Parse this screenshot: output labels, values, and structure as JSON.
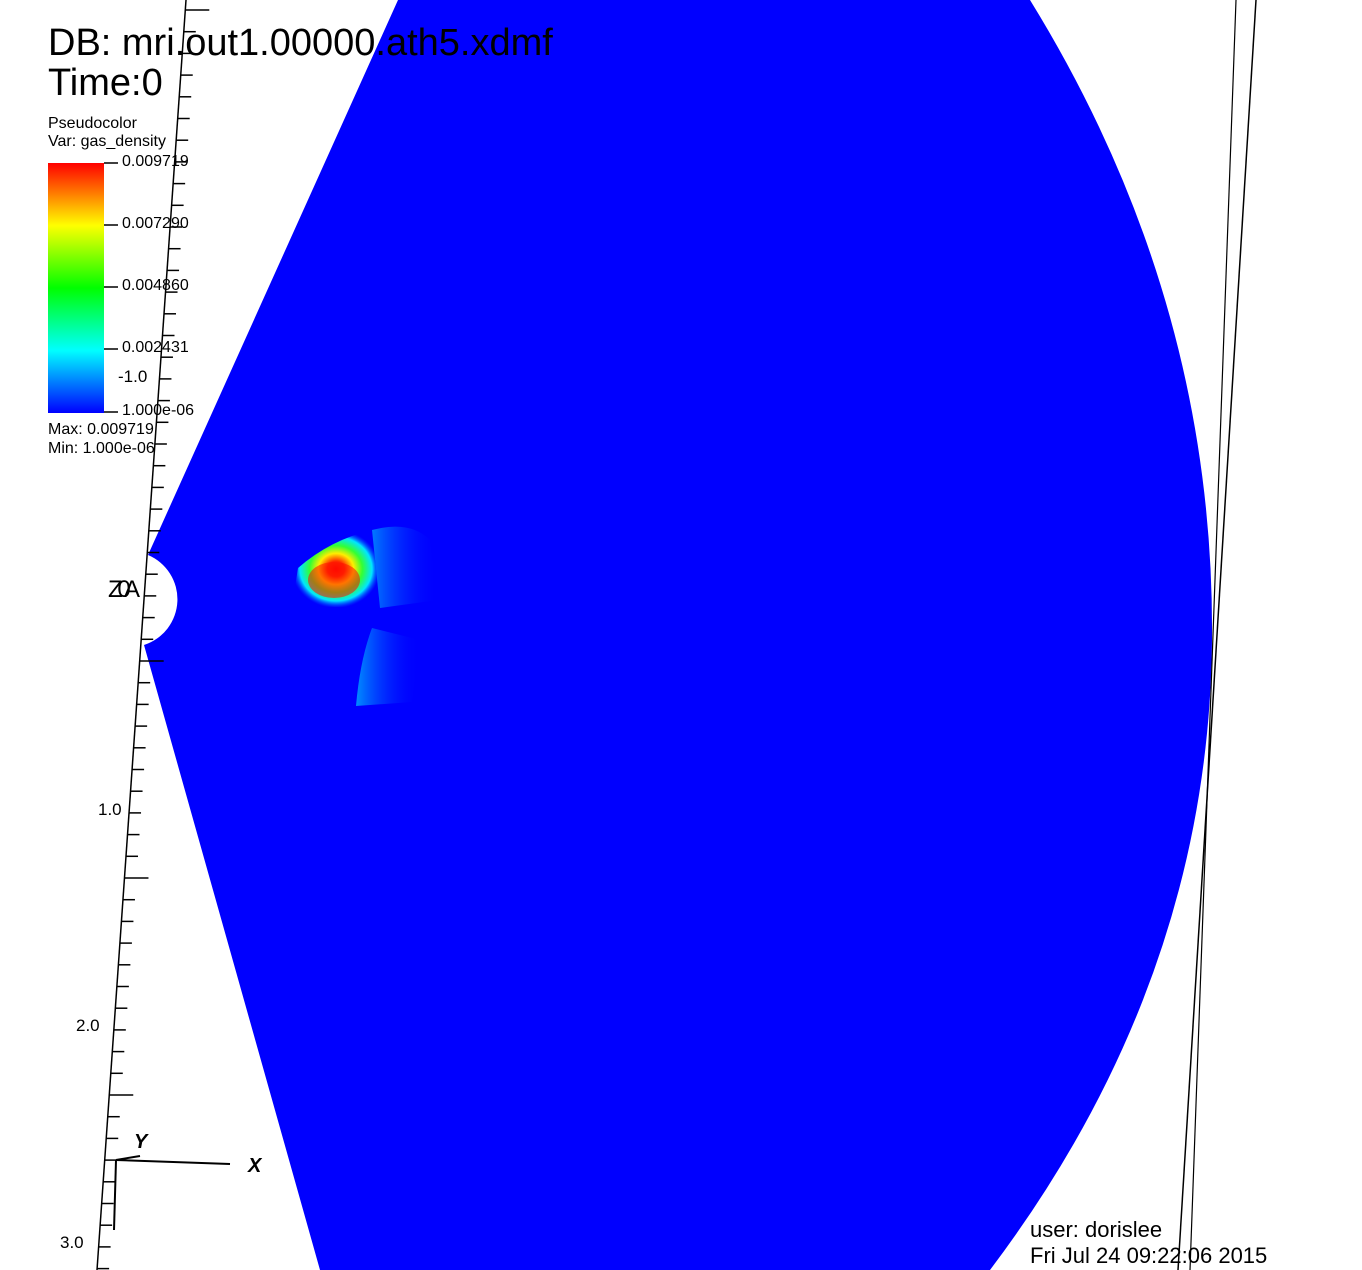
{
  "header": {
    "db_line": "DB: mri.out1.00000.ath5.xdmf",
    "time_line": "Time:0"
  },
  "legend": {
    "plot_type": "Pseudocolor",
    "variable_line": "Var: gas_density",
    "ticks": [
      "0.009719",
      "0.007290",
      "0.004860",
      "0.002431",
      "1.000e-06"
    ],
    "max_line": "Max: 0.009719",
    "min_line": "Min: 1.000e-06",
    "colormap": [
      "#ff0000",
      "#ffff00",
      "#00ff00",
      "#00ffff",
      "#0000ff"
    ]
  },
  "axes": {
    "vertical_tick_labels": [
      "-1.0",
      "1.0",
      "2.0",
      "3.0"
    ],
    "triad": {
      "x_label": "X",
      "y_label": "Y"
    },
    "origin_label": "Z 0 A"
  },
  "field": {
    "background_color": "#0000ff"
  },
  "footer": {
    "user_line": "user: dorislee",
    "date_line": "Fri Jul 24 09:22:06 2015"
  }
}
